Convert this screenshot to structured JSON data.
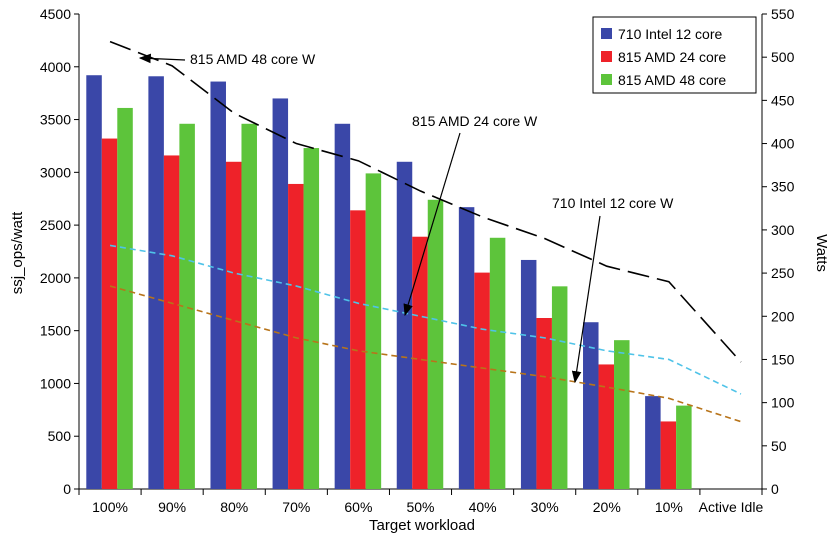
{
  "chart_data": {
    "type": "bar",
    "xlabel": "Target workload",
    "ylabel": "ssj_ops/watt",
    "y2label": "Watts",
    "ylim": [
      0,
      4500
    ],
    "y2lim": [
      0,
      550
    ],
    "yticks": [
      0,
      500,
      1000,
      1500,
      2000,
      2500,
      3000,
      3500,
      4000,
      4500
    ],
    "y2ticks": [
      0,
      50,
      100,
      150,
      200,
      250,
      300,
      350,
      400,
      450,
      500,
      550
    ],
    "categories": [
      "100%",
      "90%",
      "80%",
      "70%",
      "60%",
      "50%",
      "40%",
      "30%",
      "20%",
      "10%",
      "Active Idle"
    ],
    "series": [
      {
        "name": "710 Intel 12 core",
        "color": "#3a47a8",
        "values": [
          3920,
          3910,
          3860,
          3700,
          3460,
          3100,
          2670,
          2170,
          1580,
          880,
          null
        ]
      },
      {
        "name": "815 AMD 24 core",
        "color": "#ee2229",
        "values": [
          3320,
          3160,
          3100,
          2890,
          2640,
          2390,
          2050,
          1620,
          1180,
          640,
          null
        ]
      },
      {
        "name": "815 AMD 48 core",
        "color": "#5dc43b",
        "values": [
          3610,
          3460,
          3460,
          3230,
          2990,
          2740,
          2380,
          1920,
          1410,
          790,
          null
        ]
      }
    ],
    "lines": [
      {
        "label": "815 AMD 48 core W",
        "color": "#000000",
        "dash": "22,8",
        "axis": "right",
        "values": [
          518,
          490,
          435,
          400,
          380,
          345,
          315,
          290,
          258,
          240,
          147
        ]
      },
      {
        "label": "815 AMD 24 core W",
        "color": "#4fc3e8",
        "dash": "6,4",
        "axis": "right",
        "values": [
          282,
          270,
          250,
          235,
          215,
          200,
          185,
          175,
          160,
          150,
          110
        ]
      },
      {
        "label": "710 Intel 12 core W",
        "color": "#b8741a",
        "dash": "6,4",
        "axis": "right",
        "values": [
          235,
          215,
          195,
          175,
          160,
          150,
          140,
          130,
          118,
          105,
          78
        ]
      }
    ],
    "legend_position": "top-right",
    "grid": false
  }
}
